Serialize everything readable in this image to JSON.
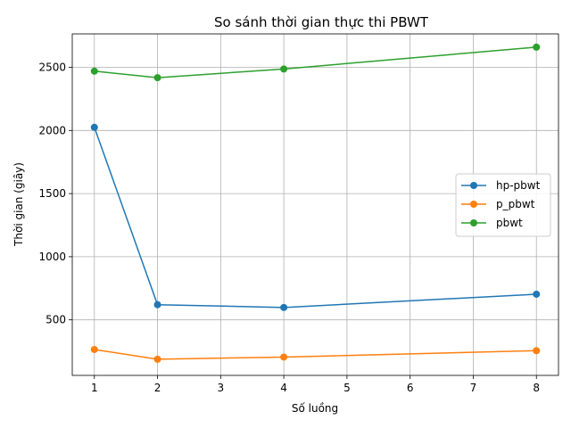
{
  "chart_data": {
    "type": "line",
    "title": "So sánh thời gian thực thi PBWT",
    "xlabel": "Số luồng",
    "ylabel": "Thời gian (giây)",
    "x": [
      1,
      2,
      4,
      8
    ],
    "xlim": [
      0.65,
      8.35
    ],
    "ylim": [
      60,
      2765
    ],
    "xticks": [
      1,
      2,
      3,
      4,
      5,
      6,
      7,
      8
    ],
    "yticks": [
      500,
      1000,
      1500,
      2000,
      2500
    ],
    "grid": true,
    "legend_position": "center-right",
    "series": [
      {
        "name": "hp-pbwt",
        "color": "#1f77b4",
        "values": [
          2025,
          620,
          598,
          703
        ]
      },
      {
        "name": "p_pbwt",
        "color": "#ff7f0e",
        "values": [
          265,
          188,
          205,
          256
        ]
      },
      {
        "name": "pbwt",
        "color": "#2ca02c",
        "values": [
          2470,
          2418,
          2487,
          2660
        ]
      }
    ]
  }
}
